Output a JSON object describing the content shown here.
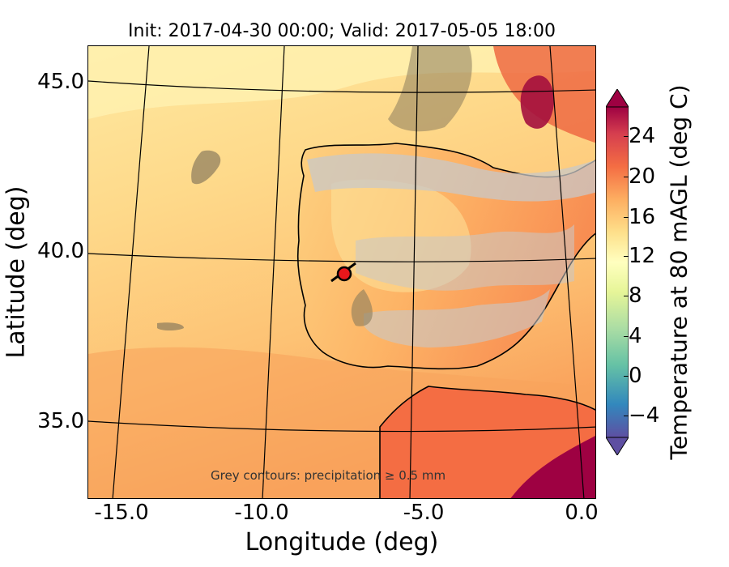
{
  "title": "Init: 2017-04-30 00:00; Valid: 2017-05-05 18:00",
  "x_axis": {
    "label": "Longitude (deg)",
    "ticks": [
      "-15.0",
      "-10.0",
      "-5.0",
      "0.0"
    ]
  },
  "y_axis": {
    "label": "Latitude (deg)",
    "ticks": [
      "45.0",
      "40.0",
      "35.0"
    ]
  },
  "colorbar": {
    "label": "Temperature at 80 mAGL (deg C)",
    "ticks": [
      "24",
      "20",
      "16",
      "12",
      "8",
      "4",
      "0",
      "−4"
    ],
    "colors": [
      "#5e4fa2",
      "#3288bd",
      "#66c2a5",
      "#abdda4",
      "#e6f598",
      "#ffffbf",
      "#fee08b",
      "#fdae61",
      "#f46d43",
      "#d53e4f",
      "#9e0142"
    ]
  },
  "annotation": "Grey contours: precipitation ≥ 0.5 mm",
  "marker": {
    "label": "site",
    "color": "#e8171b",
    "lon": -7.7,
    "lat": 39.4
  },
  "chart_data": {
    "type": "heatmap",
    "title": "Init: 2017-04-30 00:00; Valid: 2017-05-05 18:00",
    "xlabel": "Longitude (deg)",
    "ylabel": "Latitude (deg)",
    "xlim": [
      -16,
      0.5
    ],
    "ylim": [
      33,
      46
    ],
    "colorbar_label": "Temperature at 80 mAGL (deg C)",
    "colorbar_range": [
      -7,
      27
    ],
    "colorscale": "Spectral_r",
    "extend": "both",
    "annotation": "Grey contours: precipitation ≥ 0.5 mm"
  }
}
